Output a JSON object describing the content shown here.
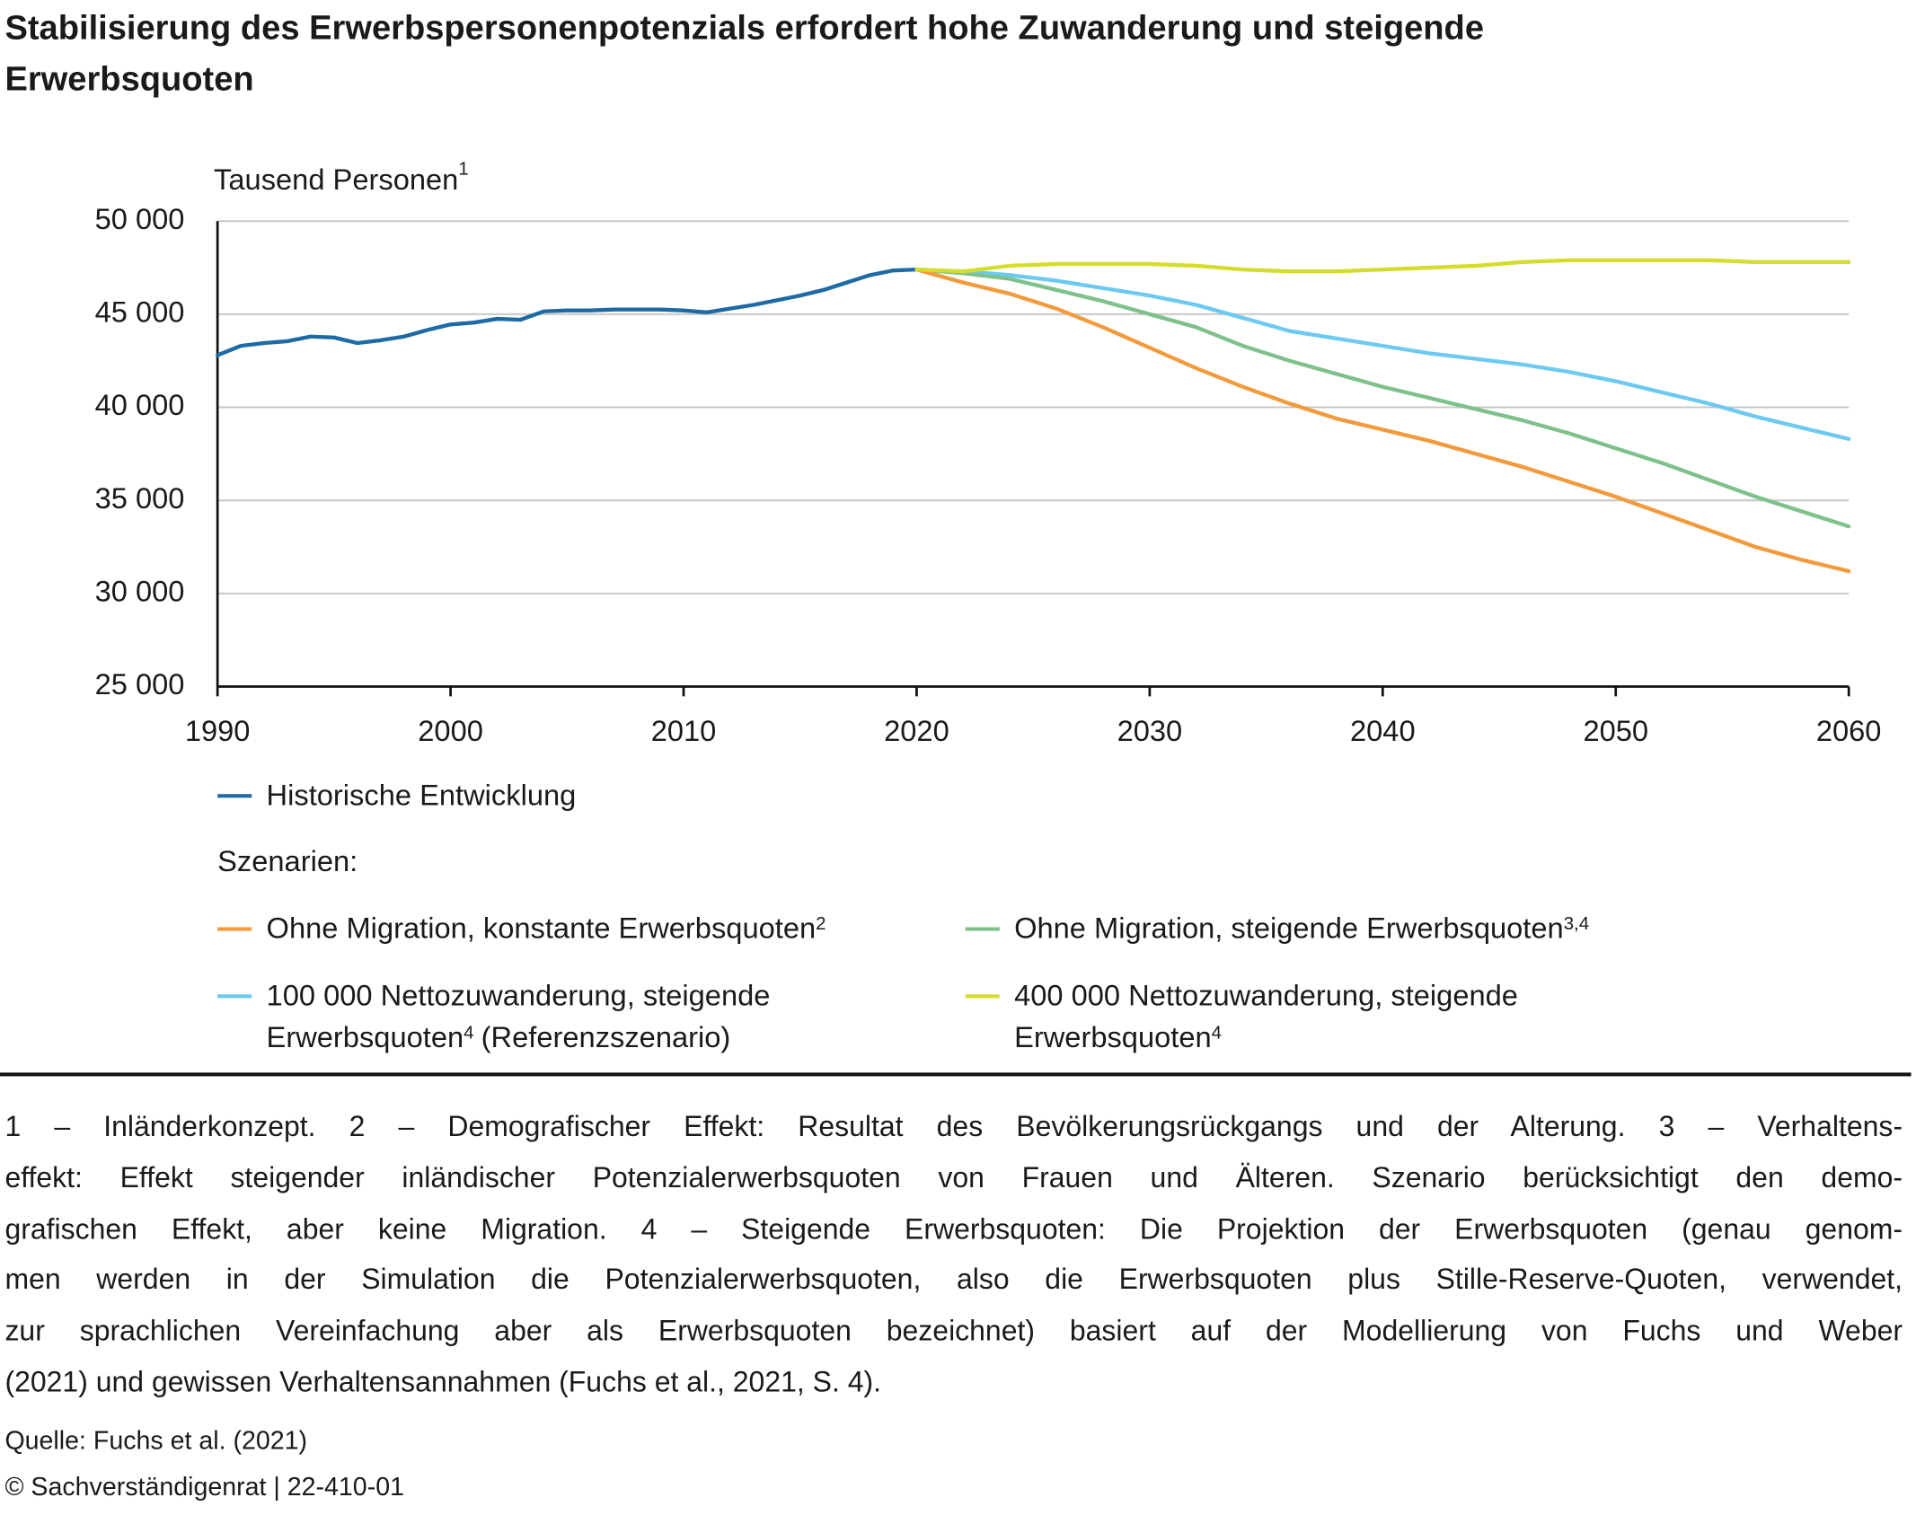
{
  "chart_data": {
    "type": "line",
    "title": "Stabilisierung des Erwerbspersonenpotenzials erfordert hohe Zuwanderung und steigende Erwerbsquoten",
    "y_label": "Tausend Personen",
    "y_label_note": "1",
    "xlim": [
      1990,
      2060
    ],
    "xticks": [
      1990,
      2000,
      2010,
      2020,
      2030,
      2040,
      2050,
      2060
    ],
    "ylim": [
      25000,
      50000
    ],
    "yticks": [
      {
        "value": 25000,
        "label": "25 000"
      },
      {
        "value": 30000,
        "label": "30 000"
      },
      {
        "value": 35000,
        "label": "35 000"
      },
      {
        "value": 40000,
        "label": "40 000"
      },
      {
        "value": 45000,
        "label": "45 000"
      },
      {
        "value": 50000,
        "label": "50 000"
      }
    ],
    "grid": true,
    "legend_heading": "Szenarien:",
    "series": [
      {
        "name": "Historische Entwicklung",
        "color": "#1d6aa5",
        "x": [
          1990,
          1991,
          1992,
          1993,
          1994,
          1995,
          1996,
          1997,
          1998,
          1999,
          2000,
          2001,
          2002,
          2003,
          2004,
          2005,
          2006,
          2007,
          2008,
          2009,
          2010,
          2011,
          2012,
          2013,
          2014,
          2015,
          2016,
          2017,
          2018,
          2019,
          2020
        ],
        "values": [
          42800,
          43300,
          43450,
          43550,
          43800,
          43750,
          43450,
          43600,
          43800,
          44150,
          44450,
          44550,
          44750,
          44700,
          45150,
          45200,
          45200,
          45250,
          45250,
          45250,
          45200,
          45100,
          45300,
          45500,
          45750,
          46000,
          46300,
          46700,
          47100,
          47350,
          47400
        ]
      },
      {
        "name": "Ohne Migration, konstante Erwerbsquoten",
        "note": "2",
        "color": "#f39a3c",
        "x": [
          2020,
          2022,
          2024,
          2026,
          2028,
          2030,
          2032,
          2034,
          2036,
          2038,
          2040,
          2042,
          2044,
          2046,
          2048,
          2050,
          2052,
          2054,
          2056,
          2058,
          2060
        ],
        "values": [
          47400,
          46700,
          46100,
          45300,
          44300,
          43200,
          42100,
          41100,
          40200,
          39400,
          38800,
          38200,
          37500,
          36800,
          36000,
          35200,
          34300,
          33400,
          32500,
          31800,
          31200
        ]
      },
      {
        "name": "Ohne Migration, steigende Erwerbsquoten",
        "note": "3,4",
        "color": "#7fc18a",
        "x": [
          2020,
          2022,
          2024,
          2026,
          2028,
          2030,
          2032,
          2034,
          2036,
          2038,
          2040,
          2042,
          2044,
          2046,
          2048,
          2050,
          2052,
          2054,
          2056,
          2058,
          2060
        ],
        "values": [
          47400,
          47200,
          46900,
          46300,
          45700,
          45000,
          44300,
          43300,
          42500,
          41800,
          41100,
          40500,
          39900,
          39300,
          38600,
          37800,
          37000,
          36100,
          35200,
          34400,
          33600
        ]
      },
      {
        "name": "100 000 Nettozuwanderung, steigende Erwerbsquoten",
        "note": "4",
        "suffix": "(Referenzszenario)",
        "color": "#6ccaf0",
        "x": [
          2020,
          2022,
          2024,
          2026,
          2028,
          2030,
          2032,
          2034,
          2036,
          2038,
          2040,
          2042,
          2044,
          2046,
          2048,
          2050,
          2052,
          2054,
          2056,
          2058,
          2060
        ],
        "values": [
          47400,
          47300,
          47100,
          46800,
          46400,
          46000,
          45500,
          44800,
          44100,
          43700,
          43300,
          42900,
          42600,
          42300,
          41900,
          41400,
          40800,
          40200,
          39500,
          38900,
          38300
        ]
      },
      {
        "name": "400 000 Nettozuwanderung, steigende Erwerbsquoten",
        "note": "4",
        "color": "#d4de2a",
        "x": [
          2020,
          2022,
          2024,
          2026,
          2028,
          2030,
          2032,
          2034,
          2036,
          2038,
          2040,
          2042,
          2044,
          2046,
          2048,
          2050,
          2052,
          2054,
          2056,
          2058,
          2060
        ],
        "values": [
          47400,
          47300,
          47600,
          47700,
          47700,
          47700,
          47600,
          47400,
          47300,
          47300,
          47400,
          47500,
          47600,
          47800,
          47900,
          47900,
          47900,
          47900,
          47800,
          47800,
          47800
        ]
      }
    ],
    "footnotes": [
      "1 – Inländerkonzept. 2 – Demografischer Effekt: Resultat des Bevölkerungsrückgangs und der Alterung. 3 – Verhaltens-",
      "effekt: Effekt steigender inländischer Potenzialerwerbsquoten von Frauen und Älteren. Szenario berücksichtigt den demo-",
      "grafischen Effekt, aber keine Migration. 4 – Steigende Erwerbsquoten: Die Projektion der Erwerbsquoten (genau genom-",
      "men werden in der Simulation die Potenzialerwerbsquoten, also die Erwerbsquoten plus Stille-Reserve-Quoten, verwendet,",
      "zur sprachlichen Vereinfachung aber als Erwerbsquoten bezeichnet) basiert auf der Modellierung von Fuchs und Weber",
      "(2021) und gewissen Verhaltensannahmen (Fuchs et al., 2021, S. 4)."
    ],
    "source": "Quelle: Fuchs et al. (2021)",
    "copyright": "© Sachverständigenrat | 22-410-01"
  }
}
